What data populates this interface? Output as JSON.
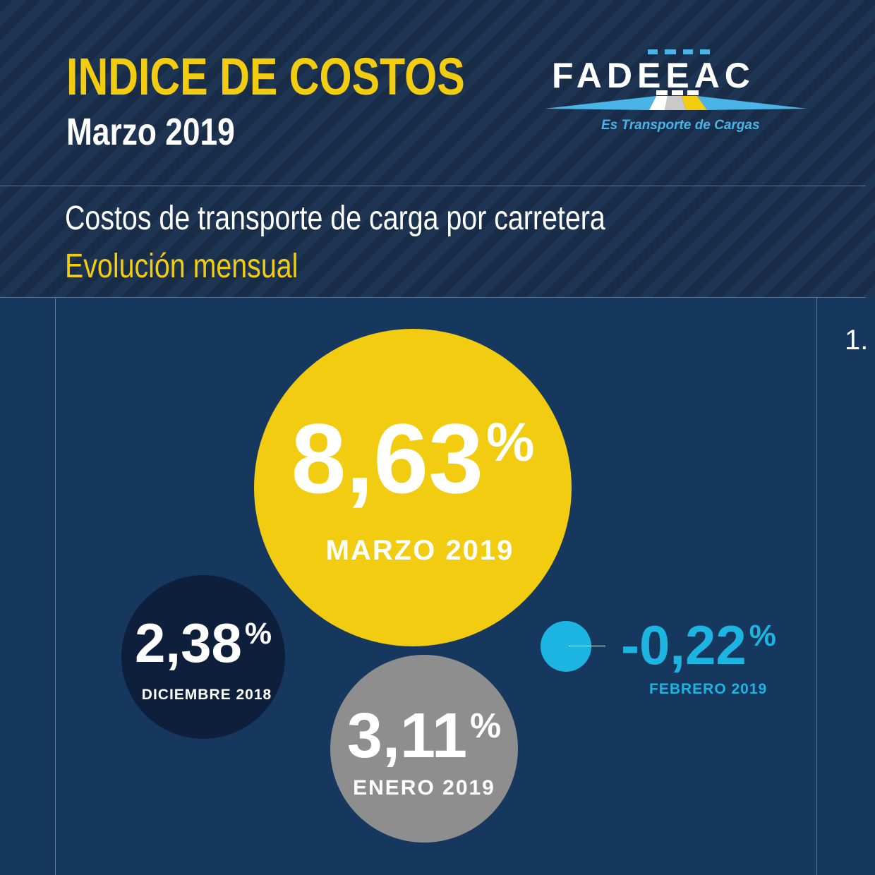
{
  "header": {
    "title": "INDICE DE COSTOS",
    "subtitle": "Marzo 2019",
    "description": "Costos de transporte de carga por carretera",
    "description_highlight": "Evolución mensual"
  },
  "logo": {
    "name": "FADEEAC",
    "tagline": "Es Transporte de Cargas"
  },
  "side_number": "1.",
  "colors": {
    "background": "#16375e",
    "yellow": "#f2cc11",
    "dark": "#0e1f3b",
    "gray": "#8e8e8f",
    "cyan": "#1cb4e0"
  },
  "chart_data": {
    "type": "bubble",
    "unit": "%",
    "points": [
      {
        "label": "DICIEMBRE 2018",
        "value": 2.38,
        "value_text": "2,38",
        "color": "#0e1f3b"
      },
      {
        "label": "ENERO 2019",
        "value": 3.11,
        "value_text": "3,11",
        "color": "#8e8e8f"
      },
      {
        "label": "FEBRERO 2019",
        "value": -0.22,
        "value_text": "-0,22",
        "color": "#1cb4e0"
      },
      {
        "label": "MARZO 2019",
        "value": 8.63,
        "value_text": "8,63",
        "color": "#f2cc11"
      }
    ]
  }
}
